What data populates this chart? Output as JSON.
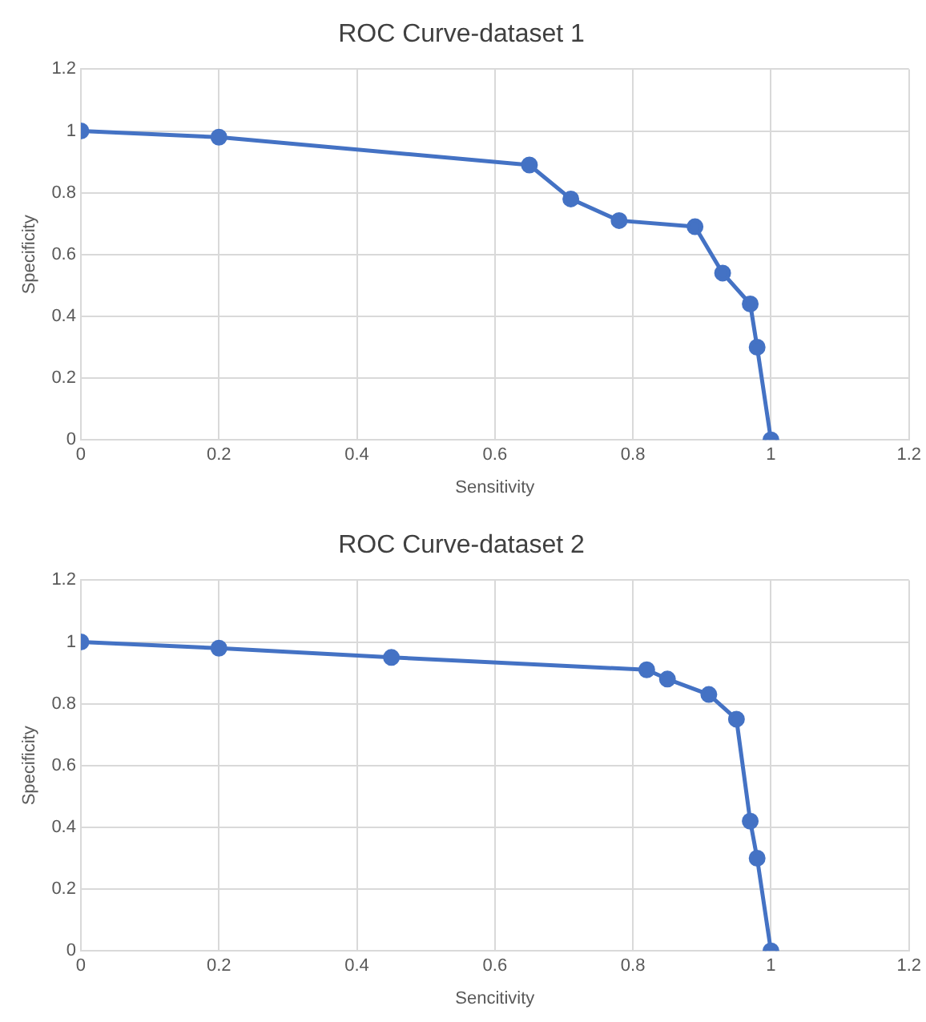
{
  "chart_data": [
    {
      "type": "line",
      "title": "ROC Curve-dataset 1",
      "xlabel": "Sensitivity",
      "ylabel": "Specificity",
      "xlim": [
        0,
        1.2
      ],
      "xticks": [
        0,
        0.2,
        0.4,
        0.6,
        0.8,
        1,
        1.2
      ],
      "ylim": [
        0,
        1.2
      ],
      "yticks": [
        0,
        0.2,
        0.4,
        0.6,
        0.8,
        1,
        1.2
      ],
      "grid": true,
      "legend": false,
      "marker": "circle",
      "line_style": "solid",
      "series": [
        {
          "color": "#4472c4",
          "x": [
            0,
            0.2,
            0.65,
            0.71,
            0.78,
            0.89,
            0.93,
            0.97,
            0.98,
            1
          ],
          "values": [
            1,
            0.98,
            0.89,
            0.78,
            0.71,
            0.69,
            0.54,
            0.44,
            0.3,
            0
          ]
        }
      ]
    },
    {
      "type": "line",
      "title": "ROC Curve-dataset 2",
      "xlabel": "Sencitivity",
      "ylabel": "Specificity",
      "xlim": [
        0,
        1.2
      ],
      "xticks": [
        0,
        0.2,
        0.4,
        0.6,
        0.8,
        1,
        1.2
      ],
      "ylim": [
        0,
        1.2
      ],
      "yticks": [
        0,
        0.2,
        0.4,
        0.6,
        0.8,
        1,
        1.2
      ],
      "grid": true,
      "legend": false,
      "marker": "circle",
      "line_style": "solid",
      "series": [
        {
          "color": "#4472c4",
          "x": [
            0,
            0.2,
            0.45,
            0.82,
            0.85,
            0.91,
            0.95,
            0.97,
            0.98,
            1
          ],
          "values": [
            1,
            0.98,
            0.95,
            0.91,
            0.88,
            0.83,
            0.75,
            0.42,
            0.3,
            0
          ]
        }
      ]
    }
  ]
}
